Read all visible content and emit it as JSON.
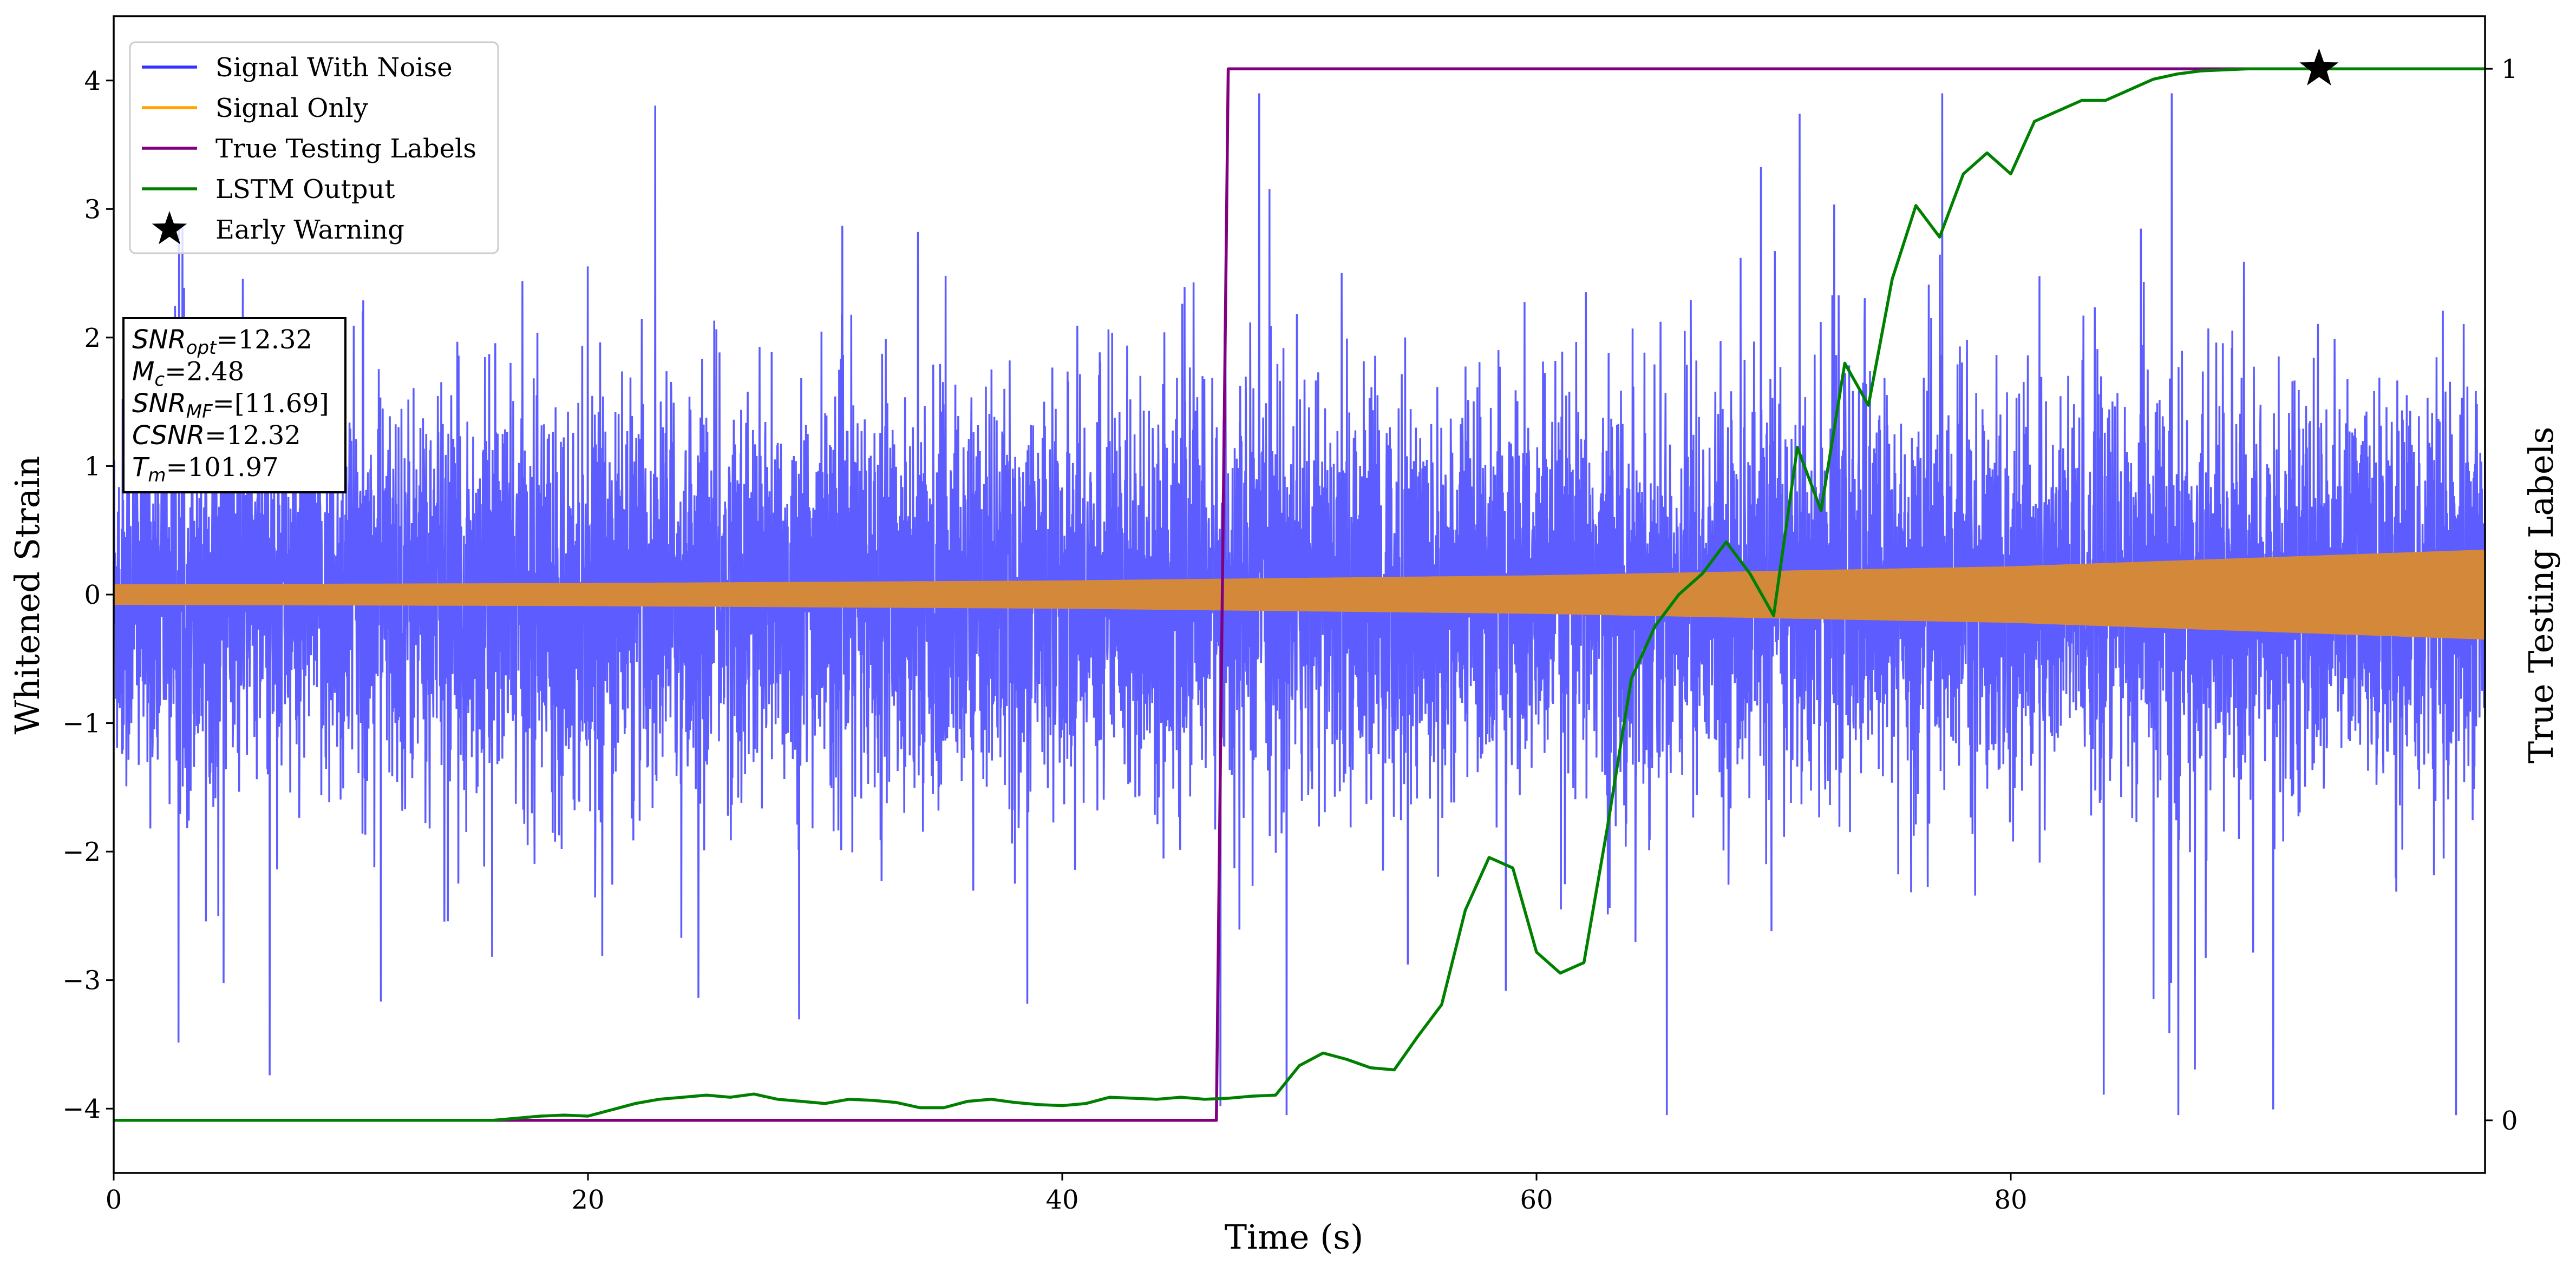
{
  "chart_data": {
    "type": "line",
    "xlabel": "Time (s)",
    "ylabel": "Whitened Strain",
    "y2label": "True Testing Labels",
    "xlim": [
      0,
      100
    ],
    "ylim": [
      -4.5,
      4.5
    ],
    "y2lim": [
      -0.05,
      1.05
    ],
    "xticks": [
      0,
      20,
      40,
      60,
      80
    ],
    "xtick_labels": [
      "0",
      "20",
      "40",
      "60",
      "80"
    ],
    "yticks": [
      -4,
      -3,
      -2,
      -1,
      0,
      1,
      2,
      3,
      4
    ],
    "ytick_labels": [
      "−4",
      "−3",
      "−2",
      "−1",
      "0",
      "1",
      "2",
      "3",
      "4"
    ],
    "y2ticks": [
      0,
      1
    ],
    "y2tick_labels": [
      "0",
      "1"
    ],
    "legend_position": "top-left",
    "series": [
      {
        "name": "Signal With Noise",
        "color": "#3333ff",
        "description": "Gaussian-like noise around 0 with spikes up to about ±3.5",
        "x_range": [
          0,
          100
        ],
        "y_range": [
          -4.05,
          3.9
        ]
      },
      {
        "name": "Signal Only",
        "color": "#ffa500",
        "description": "Chirp envelope growing from ±0.08 at t=0 to ±0.35 at t=100",
        "x": [
          0,
          20,
          40,
          60,
          80,
          100
        ],
        "envelope": [
          0.08,
          0.09,
          0.11,
          0.15,
          0.22,
          0.35
        ]
      },
      {
        "name": "True Testing Labels",
        "color": "#800080",
        "axis": "right",
        "x": [
          0,
          46.5,
          47,
          100
        ],
        "y": [
          0,
          0,
          1,
          1
        ]
      },
      {
        "name": "LSTM Output",
        "color": "#008000",
        "axis": "right",
        "x": [
          0,
          16,
          17,
          18,
          19,
          20,
          21,
          22,
          23,
          24,
          25,
          26,
          27,
          28,
          29,
          30,
          31,
          32,
          33,
          34,
          35,
          36,
          37,
          38,
          39,
          40,
          41,
          42,
          43,
          44,
          45,
          46,
          47,
          48,
          49,
          50,
          51,
          52,
          53,
          54,
          55,
          56,
          57,
          58,
          59,
          60,
          61,
          62,
          63,
          64,
          65,
          66,
          67,
          68,
          69,
          70,
          71,
          72,
          73,
          74,
          75,
          76,
          77,
          78,
          79,
          80,
          81,
          82,
          83,
          84,
          85,
          86,
          87,
          88,
          89,
          90,
          91,
          92,
          93,
          94,
          95,
          100
        ],
        "y": [
          0,
          0,
          0.002,
          0.004,
          0.005,
          0.004,
          0.01,
          0.016,
          0.02,
          0.022,
          0.024,
          0.022,
          0.025,
          0.02,
          0.018,
          0.016,
          0.02,
          0.019,
          0.017,
          0.012,
          0.012,
          0.018,
          0.02,
          0.017,
          0.015,
          0.014,
          0.016,
          0.022,
          0.021,
          0.02,
          0.022,
          0.02,
          0.021,
          0.023,
          0.024,
          0.052,
          0.064,
          0.058,
          0.05,
          0.048,
          0.08,
          0.11,
          0.2,
          0.25,
          0.24,
          0.16,
          0.14,
          0.15,
          0.28,
          0.42,
          0.47,
          0.5,
          0.52,
          0.55,
          0.52,
          0.48,
          0.64,
          0.58,
          0.72,
          0.68,
          0.8,
          0.87,
          0.84,
          0.9,
          0.92,
          0.9,
          0.95,
          0.96,
          0.97,
          0.97,
          0.98,
          0.99,
          0.995,
          0.998,
          0.999,
          1,
          1,
          1,
          1,
          1,
          1,
          1
        ]
      }
    ],
    "early_warning": {
      "name": "Early Warning",
      "x": 93,
      "y": 1
    },
    "annotation": {
      "lines": [
        {
          "var": "SNR",
          "sub": "opt",
          "value": "=12.32"
        },
        {
          "var": "M",
          "sub": "c",
          "value": "=2.48"
        },
        {
          "var": "SNR",
          "sub": "MF",
          "value": "=[11.69]"
        },
        {
          "var": "CSNR",
          "sub": "",
          "value": "=12.32"
        },
        {
          "var": "T",
          "sub": "m",
          "value": "=101.97"
        }
      ]
    }
  }
}
